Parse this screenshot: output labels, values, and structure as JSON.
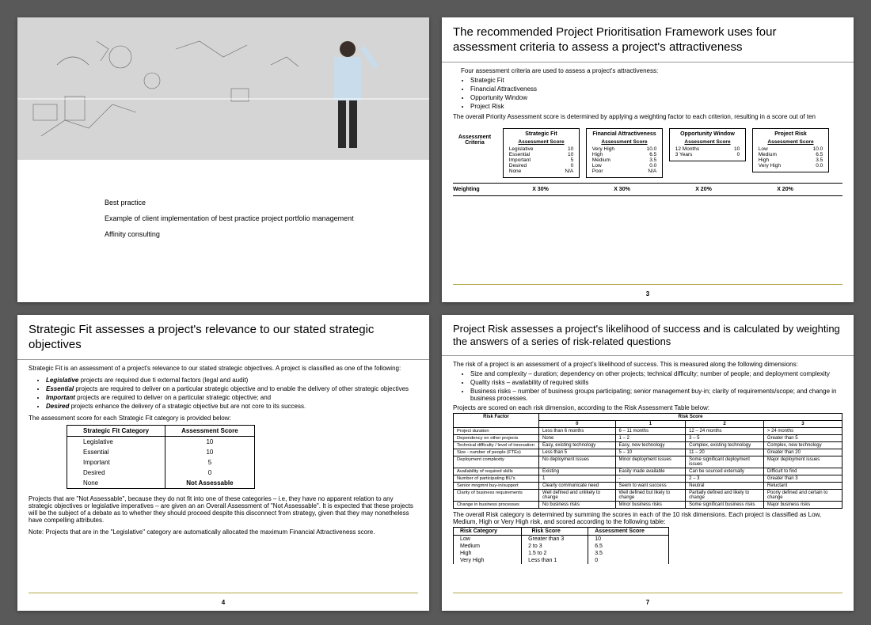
{
  "slide1": {
    "line1": "Best practice",
    "line2": "Example of client implementation of best practice project portfolio management",
    "line3": "Affinity consulting"
  },
  "slide2": {
    "title": "The recommended Project Prioritisation Framework uses four assessment criteria to assess a project's attractiveness",
    "intro": "Four assessment criteria are used to assess a project's attractiveness:",
    "criteria": [
      "Strategic Fit",
      "Financial Attractiveness",
      "Opportunity Window",
      "Project Risk"
    ],
    "overall": "The overall Priority Assessment score is determined by applying a weighting factor to each criterion, resulting in a score out of ten",
    "critLabel": "Assessment Criteria",
    "scoreLabel": "Assessment Score",
    "weightLabel": "Weighting",
    "boxes": [
      {
        "name": "Strategic Fit",
        "rows": [
          [
            "Legislative",
            "10"
          ],
          [
            "Essential",
            "10"
          ],
          [
            "Important",
            "5"
          ],
          [
            "Desired",
            "0"
          ],
          [
            "None",
            "N/A"
          ]
        ],
        "weight": "X 30%"
      },
      {
        "name": "Financial Attractiveness",
        "rows": [
          [
            "Very High",
            "10.0"
          ],
          [
            "High",
            "6.5"
          ],
          [
            "Medium",
            "3.5"
          ],
          [
            "Low",
            "0.0"
          ],
          [
            "Poor",
            "N/A"
          ]
        ],
        "weight": "X 30%"
      },
      {
        "name": "Opportunity Window",
        "rows": [
          [
            "12 Months",
            "10"
          ],
          [
            "3 Years",
            "0"
          ]
        ],
        "weight": "X 20%"
      },
      {
        "name": "Project Risk",
        "rows": [
          [
            "Low",
            "10.0"
          ],
          [
            "Medium",
            "6.5"
          ],
          [
            "High",
            "3.5"
          ],
          [
            "Very High",
            "0.0"
          ]
        ],
        "weight": "X 20%"
      }
    ],
    "page": "3"
  },
  "slide3": {
    "title": "Strategic Fit assesses a project's relevance to our stated strategic objectives",
    "intro": "Strategic Fit is an assessment of a project's relevance to our stated strategic objectives.  A project is classified as one of the following:",
    "bullets": [
      {
        "b": "Legislative",
        "t": " projects are required due ti external factors (legal and audit)"
      },
      {
        "b": "Essential",
        "t": " projects are required to deliver on a particular strategic objective and to enable the delivery of other strategic objectives"
      },
      {
        "b": "Important",
        "t": " projects are required to deliver on a particular strategic objective; and"
      },
      {
        "b": "Desired",
        "t": " projects enhance the delivery of a strategic objective but are not core to its success."
      }
    ],
    "tableIntro": "The assessment score for each Strategic Fit category is provided below:",
    "headers": [
      "Strategic Fit Category",
      "Assessment Score"
    ],
    "rows": [
      [
        "Legislative",
        "10"
      ],
      [
        "Essential",
        "10"
      ],
      [
        "Important",
        "5"
      ],
      [
        "Desired",
        "0"
      ],
      [
        "None",
        "Not Assessable"
      ]
    ],
    "para1": "Projects that are \"Not Assessable\", because they do not fit into one of these categories – i.e, they have no apparent relation to any strategic objectives or legislative imperatives – are given an an Overall Assessment of \"Not Assessable\".  It is expected that these projects will be the subject of a debate as to whether they should proceed despite this disconnect from strategy, given that they may nonetheless have compelling attributes.",
    "para2": "Note:  Projects that are in the \"Legislative\" category are automatically allocated the maximum Financial Attractiveness score.",
    "page": "4"
  },
  "slide4": {
    "title": "Project Risk assesses a project's likelihood of success and is calculated by weighting the answers of a series of risk-related questions",
    "intro": "The risk of a project is an assessment of a project's likelihood of success. This is measured along the following dimensions:",
    "bullets": [
      "Size and complexity – duration; dependency on other projects; technical difficulty; number of people; and deployment complexity",
      "Quality risks – availability of required skills",
      "Business risks – number of business groups participating; senior management buy-in; clarity of requirements/scope; and change in business processes."
    ],
    "tableIntro": "Projects are scored on each risk dimension, according to the Risk Assessment Table below:",
    "riskHeader": [
      "Risk Factor",
      "Risk Score"
    ],
    "riskCols": [
      "0",
      "1",
      "2",
      "3"
    ],
    "riskRows": [
      [
        "Project duration",
        "Less than 6 months",
        "6 – 11 months",
        "12 – 24 months",
        "> 24 months"
      ],
      [
        "Dependency on other projects",
        "None",
        "1 – 2",
        "3 – 5",
        "Greater than 5"
      ],
      [
        "Technical difficulty / level of innovation",
        "Easy, existing technology",
        "Easy, new technology",
        "Complex, existing technology",
        "Complex, new technology"
      ],
      [
        "Size - number of people (FTEs)",
        "Less than 5",
        "5 – 10",
        "11 – 20",
        "Greater than 20"
      ],
      [
        "Deployment complexity",
        "No deployment issues",
        "Minor deployment issues",
        "Some significant deployment issues",
        "Major deployment issues"
      ],
      [
        "Availability of required skills",
        "Existing",
        "Easily made available",
        "Can be sourced externally",
        "Difficult to find"
      ],
      [
        "Number of participating BU's",
        "1",
        "-",
        "2 – 3",
        "Greater than 3"
      ],
      [
        "Senior mngmnt buy-in/support",
        "Clearly communicate need",
        "Seem to want success",
        "Neutral",
        "Reluctant"
      ],
      [
        "Clarity of business requirements",
        "Well defined and unlikely to change",
        "Well defined but likely to change",
        "Partially defined and likely to change",
        "Poorly defined and certain to change"
      ],
      [
        "Change in business processes",
        "No business risks",
        "Minor business risks",
        "Some significant business risks",
        "Major business risks"
      ]
    ],
    "para1": "The overall Risk category is determined by summing the scores in each of the 10 risk dimensions.  Each project is classified as Low, Medium, High or Very High risk, and scored according to the following table:",
    "scoreHeaders": [
      "Risk Category",
      "Risk Score",
      "Assessment Score"
    ],
    "scoreRows": [
      [
        "Low",
        "Greater than 3",
        "10"
      ],
      [
        "Medium",
        "2 to 3",
        "6.5"
      ],
      [
        "High",
        "1.5 to 2",
        "3.5"
      ],
      [
        "Very High",
        "Less than 1",
        "0"
      ]
    ],
    "page": "7"
  }
}
